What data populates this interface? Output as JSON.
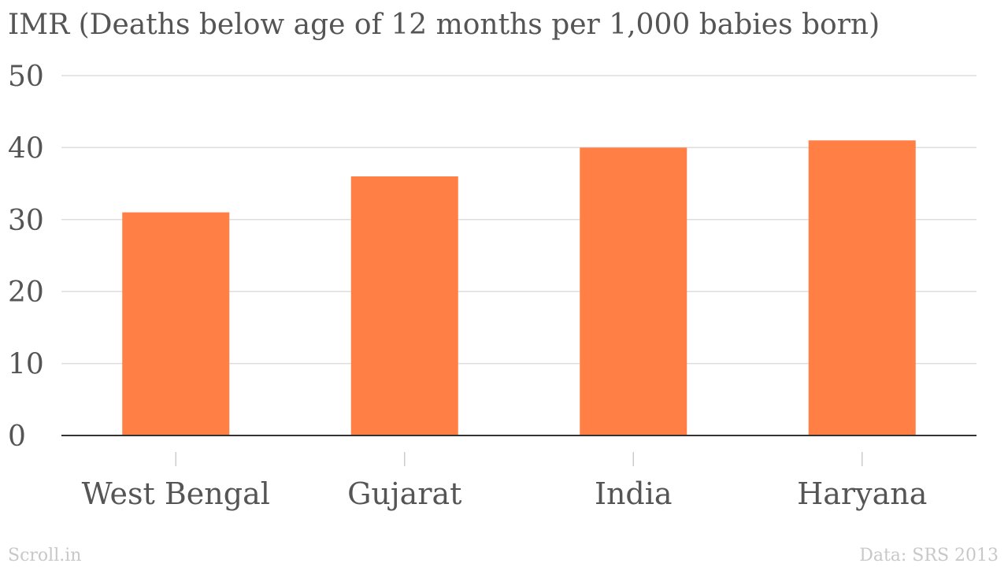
{
  "chart_data": {
    "type": "bar",
    "title": "IMR (Deaths below age of 12 months per 1,000 babies born)",
    "categories": [
      "West Bengal",
      "Gujarat",
      "India",
      "Haryana"
    ],
    "values": [
      31,
      36,
      40,
      41
    ],
    "ylim": [
      0,
      50
    ],
    "yticks": [
      0,
      10,
      20,
      30,
      40,
      50
    ],
    "xlabel": "",
    "ylabel": "",
    "grid": true,
    "bar_color": "#ff7f45",
    "grid_color": "#dddddd",
    "axis_color": "#333333"
  },
  "footer": {
    "brand": "Scroll.in",
    "source": "Data: SRS 2013"
  }
}
